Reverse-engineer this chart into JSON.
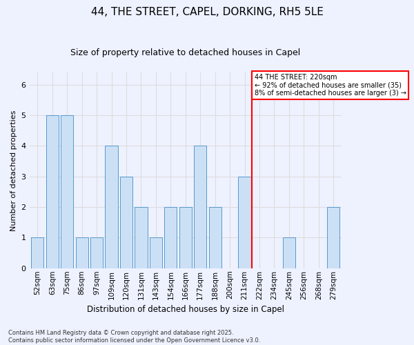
{
  "title": "44, THE STREET, CAPEL, DORKING, RH5 5LE",
  "subtitle": "Size of property relative to detached houses in Capel",
  "xlabel": "Distribution of detached houses by size in Capel",
  "ylabel": "Number of detached properties",
  "categories": [
    "52sqm",
    "63sqm",
    "75sqm",
    "86sqm",
    "97sqm",
    "109sqm",
    "120sqm",
    "131sqm",
    "143sqm",
    "154sqm",
    "166sqm",
    "177sqm",
    "188sqm",
    "200sqm",
    "211sqm",
    "222sqm",
    "234sqm",
    "245sqm",
    "256sqm",
    "268sqm",
    "279sqm"
  ],
  "values": [
    1,
    5,
    5,
    1,
    1,
    4,
    3,
    2,
    1,
    2,
    2,
    4,
    2,
    0,
    3,
    0,
    0,
    1,
    0,
    0,
    2
  ],
  "bar_color": "#cce0f5",
  "bar_edge_color": "#5599cc",
  "grid_color": "#dddddd",
  "vline_x_index": 15,
  "vline_color": "red",
  "annotation_text": "44 THE STREET: 220sqm\n← 92% of detached houses are smaller (35)\n8% of semi-detached houses are larger (3) →",
  "annotation_box_color": "red",
  "annotation_text_color": "black",
  "annotation_facecolor": "white",
  "ylim_max": 6.4,
  "footnote": "Contains HM Land Registry data © Crown copyright and database right 2025.\nContains public sector information licensed under the Open Government Licence v3.0.",
  "background_color": "#eef2ff",
  "title_fontsize": 11,
  "subtitle_fontsize": 9,
  "axis_label_fontsize": 8,
  "tick_fontsize": 7.5,
  "footnote_fontsize": 6
}
